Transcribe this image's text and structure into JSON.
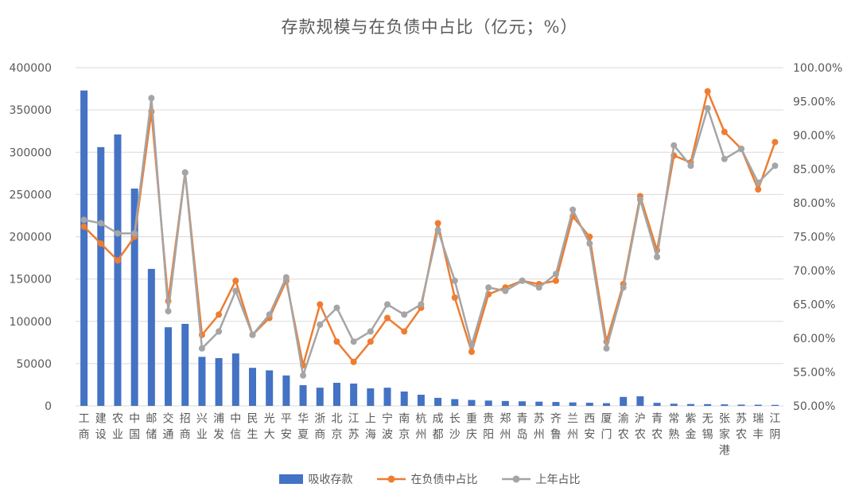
{
  "chart": {
    "title": "存款规模与在负债中占比（亿元；%）",
    "legend": {
      "bars_label": "吸收存款",
      "line1_label": "在负债中占比",
      "line2_label": "上年占比"
    },
    "colors": {
      "bar": "#4472C4",
      "line1": "#ED7D31",
      "line2": "#A5A5A5",
      "grid": "#D9D9D9",
      "axis_text": "#595959",
      "title_text": "#595959"
    }
  },
  "chart_data": {
    "type": "bar",
    "subtype": "bar+line dual-axis combo",
    "title": "存款规模与在负债中占比（亿元；%）",
    "categories": [
      "工商",
      "建设",
      "农业",
      "中国",
      "邮储",
      "交通",
      "招商",
      "兴业",
      "浦发",
      "中信",
      "民生",
      "光大",
      "平安",
      "华夏",
      "浙商",
      "北京",
      "江苏",
      "上海",
      "宁波",
      "南京",
      "杭州",
      "成都",
      "长沙",
      "重庆",
      "贵阳",
      "郑州",
      "青岛",
      "苏州",
      "齐鲁",
      "兰州",
      "西安",
      "厦门",
      "渝农",
      "沪农",
      "青农",
      "常熟",
      "紫金",
      "无锡",
      "张家港",
      "苏农",
      "瑞丰",
      "江阴"
    ],
    "series": [
      {
        "name": "吸收存款",
        "type": "bar",
        "axis": "left",
        "values": [
          373000,
          306000,
          321000,
          257000,
          162000,
          93000,
          97000,
          58000,
          56500,
          62000,
          45000,
          42000,
          36000,
          24500,
          21500,
          27300,
          26400,
          20700,
          21500,
          17000,
          13200,
          9500,
          8000,
          7000,
          6300,
          5800,
          5400,
          5000,
          4600,
          4100,
          3700,
          3200,
          10600,
          11400,
          3600,
          2600,
          2200,
          2100,
          1800,
          1500,
          1400,
          1200
        ]
      },
      {
        "name": "在负债中占比",
        "type": "line",
        "axis": "right",
        "values": [
          76.5,
          74,
          71.5,
          75,
          93.5,
          65.5,
          84.5,
          60.5,
          63.5,
          68.5,
          60.5,
          63,
          68.5,
          56,
          65,
          59.5,
          56.5,
          59.5,
          63,
          61,
          64.5,
          77,
          66,
          58,
          66.5,
          67.5,
          68.5,
          68,
          68.5,
          78,
          75,
          59.5,
          68,
          81,
          73,
          87,
          86,
          96.5,
          90.5,
          88,
          82,
          89
        ]
      },
      {
        "name": "上年占比",
        "type": "line",
        "axis": "right",
        "values": [
          77.5,
          77,
          75.5,
          75.5,
          95.5,
          64,
          84.5,
          58.5,
          61,
          67,
          60.5,
          63.5,
          69,
          54.5,
          62,
          64.5,
          59.5,
          61,
          65,
          63.5,
          65,
          76,
          68.5,
          59,
          67.5,
          67,
          68.5,
          67.5,
          69.5,
          79,
          74,
          58.5,
          67.5,
          80.5,
          72,
          88.5,
          85.5,
          94,
          86.5,
          88,
          83,
          85.5
        ]
      }
    ],
    "left_axis": {
      "min": 0,
      "max": 400000,
      "step": 50000,
      "tick_labels": [
        "0",
        "50000",
        "100000",
        "150000",
        "200000",
        "250000",
        "300000",
        "350000",
        "400000"
      ]
    },
    "right_axis": {
      "min": 50,
      "max": 100,
      "step": 5,
      "tick_labels": [
        "50.00%",
        "55.00%",
        "60.00%",
        "65.00%",
        "70.00%",
        "75.00%",
        "80.00%",
        "85.00%",
        "90.00%",
        "95.00%",
        "100.00%"
      ]
    },
    "grid": true,
    "legend_position": "bottom"
  }
}
